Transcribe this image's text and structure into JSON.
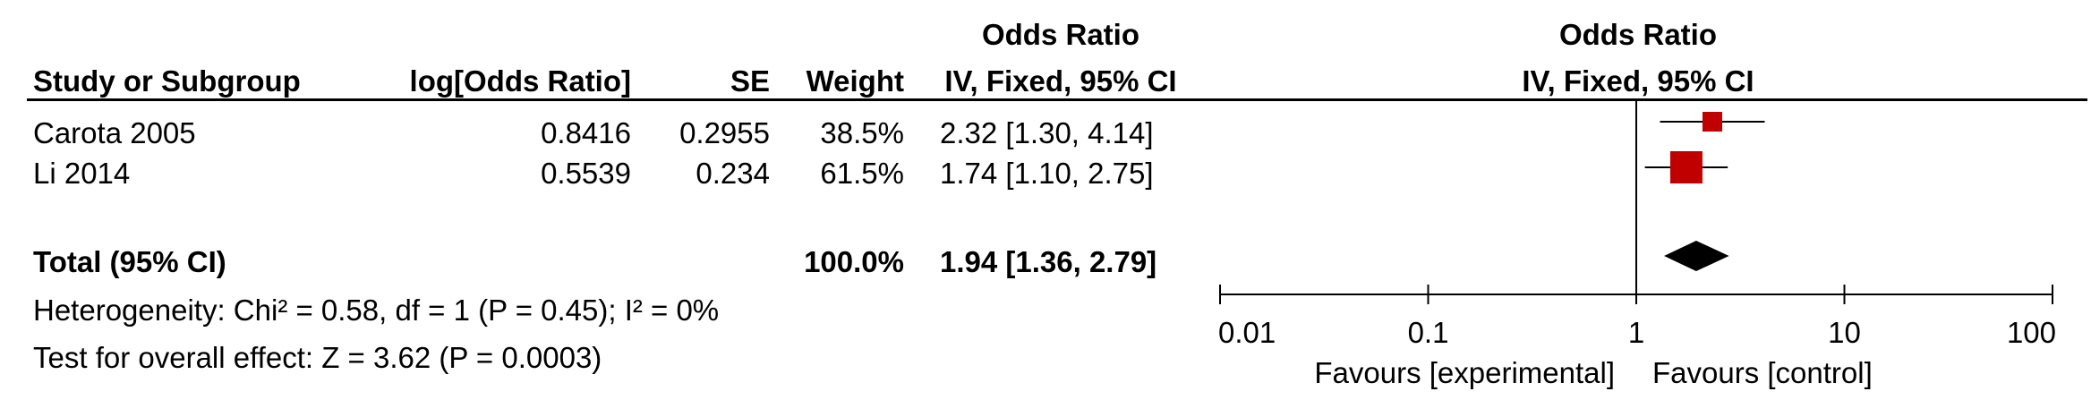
{
  "table": {
    "header_group_left": "Odds Ratio",
    "header_group_right": "Odds Ratio",
    "col_study": "Study or Subgroup",
    "col_logor": "log[Odds Ratio]",
    "col_se": "SE",
    "col_weight": "Weight",
    "col_ci_left": "IV, Fixed, 95% CI",
    "col_ci_right": "IV, Fixed, 95% CI",
    "rows": [
      {
        "study": "Carota 2005",
        "logor": "0.8416",
        "se": "0.2955",
        "weight": "38.5%",
        "ci": "2.32 [1.30, 4.14]"
      },
      {
        "study": "Li 2014",
        "logor": "0.5539",
        "se": "0.234",
        "weight": "61.5%",
        "ci": "1.74 [1.10, 2.75]"
      }
    ],
    "total": {
      "label": "Total (95% CI)",
      "weight": "100.0%",
      "ci": "1.94 [1.36, 2.79]"
    },
    "heterogeneity": "Heterogeneity: Chi² = 0.58, df = 1 (P = 0.45); I² = 0%",
    "overall_effect": "Test for overall effect: Z = 3.62 (P = 0.0003)"
  },
  "chart_data": {
    "type": "scatter",
    "subtype": "forest-plot",
    "x_scale": "log",
    "xlim": [
      0.01,
      100
    ],
    "x_ticks": [
      "0.01",
      "0.1",
      "1",
      "10",
      "100"
    ],
    "x_tick_values": [
      0.01,
      0.1,
      1,
      10,
      100
    ],
    "null_line": 1,
    "favours_left": "Favours [experimental]",
    "favours_right": "Favours [control]",
    "studies": [
      {
        "name": "Carota 2005",
        "or": 2.32,
        "lower": 1.3,
        "upper": 4.14,
        "weight": 38.5
      },
      {
        "name": "Li 2014",
        "or": 1.74,
        "lower": 1.1,
        "upper": 2.75,
        "weight": 61.5
      }
    ],
    "pooled": {
      "or": 1.94,
      "lower": 1.36,
      "upper": 2.79
    },
    "colors": {
      "study_marker": "#c00000",
      "pooled_marker": "#000000",
      "lines": "#000000"
    }
  }
}
